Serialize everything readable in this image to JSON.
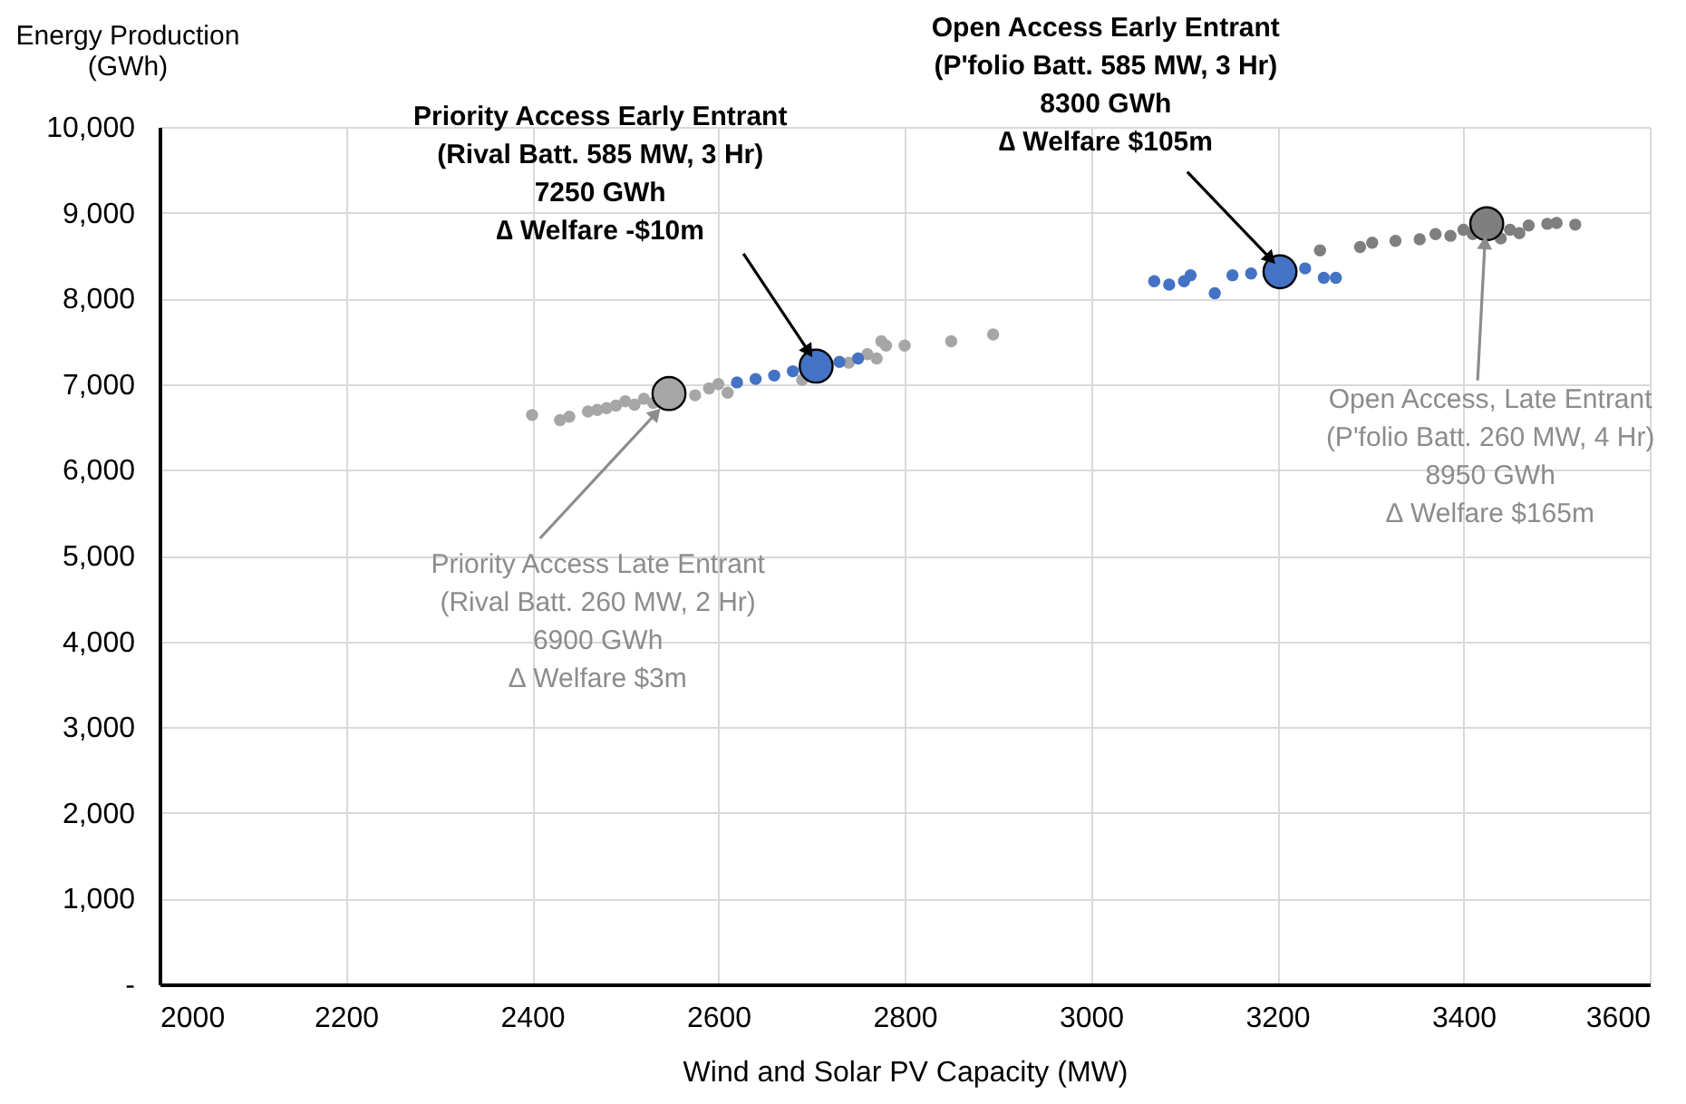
{
  "chart_data": {
    "type": "scatter",
    "xlabel": "Wind and Solar PV Capacity (MW)",
    "ylabel": "Energy Production (GWh)",
    "xlim": [
      2000,
      3600
    ],
    "xticks": [
      2000,
      2200,
      2400,
      2600,
      2800,
      3000,
      3200,
      3400,
      3600
    ],
    "ylim": [
      0,
      10000
    ],
    "yticks": [
      {
        "value": 0,
        "label": "-"
      },
      {
        "value": 1000,
        "label": "1,000"
      },
      {
        "value": 2000,
        "label": "2,000"
      },
      {
        "value": 3000,
        "label": "3,000"
      },
      {
        "value": 4000,
        "label": "4,000"
      },
      {
        "value": 5000,
        "label": "5,000"
      },
      {
        "value": 6000,
        "label": "6,000"
      },
      {
        "value": 7000,
        "label": "7,000"
      },
      {
        "value": 8000,
        "label": "8,000"
      },
      {
        "value": 9000,
        "label": "9,000"
      },
      {
        "value": 10000,
        "label": "10,000"
      }
    ],
    "grid": true,
    "marker": "circle",
    "series": [
      {
        "color": "#a6a6a6",
        "x": [
          2400,
          2430,
          2440,
          2460,
          2470,
          2480,
          2490,
          2500,
          2510,
          2520,
          2530,
          2575,
          2590,
          2600,
          2610,
          2690,
          2740,
          2760,
          2770,
          2775,
          2780,
          2800,
          2850,
          2895
        ],
        "values": [
          6640,
          6580,
          6620,
          6680,
          6700,
          6720,
          6750,
          6800,
          6760,
          6830,
          6780,
          6870,
          6950,
          7000,
          6900,
          7050,
          7250,
          7350,
          7300,
          7500,
          7450,
          7450,
          7500,
          7580
        ]
      },
      {
        "color": "#4472c4",
        "x": [
          2620,
          2640,
          2660,
          2680,
          2730,
          2750,
          3068,
          3084,
          3100,
          3107,
          3133,
          3152,
          3172,
          3230,
          3250,
          3263
        ],
        "values": [
          7020,
          7060,
          7100,
          7150,
          7260,
          7300,
          8200,
          8160,
          8200,
          8270,
          8060,
          8270,
          8290,
          8350,
          8240,
          8240
        ]
      },
      {
        "color": "#7f7f7f",
        "x": [
          3246,
          3289,
          3302,
          3327,
          3353,
          3370,
          3386,
          3400,
          3410,
          3440,
          3450,
          3460,
          3470,
          3490,
          3500,
          3520
        ],
        "values": [
          8560,
          8600,
          8650,
          8670,
          8690,
          8750,
          8730,
          8800,
          8750,
          8700,
          8800,
          8760,
          8850,
          8870,
          8880,
          8860
        ]
      },
      {
        "colors": [
          "#a6a6a6",
          "#4472c4",
          "#4472c4",
          "#7f7f7f"
        ],
        "x": [
          2547,
          2705,
          3203,
          3425
        ],
        "values": [
          6890,
          7210,
          8310,
          8870
        ]
      }
    ],
    "annotations": [
      {
        "text": "Priority Access Early Entrant\n(Rival Batt. 585 MW, 3 Hr)\n7250 GWh\n∆ Welfare -$10m",
        "x": 2697,
        "y": 7380
      },
      {
        "text": "Open Access Early Entrant\n(P'folio Batt. 585 MW, 3 Hr)\n8300 GWh\n∆ Welfare $105m",
        "x": 3193,
        "y": 8460
      },
      {
        "text": "Open Access, Late Entrant\n(P'folio Batt.  260 MW, 4 Hr)\n8950 GWh\n∆ Welfare $165m",
        "x": 3423,
        "y": 8650
      },
      {
        "text": "Priority Access Late Entrant\n(Rival Batt. 260 MW, 2 Hr)\n6900 GWh\n∆ Welfare $3m",
        "x": 2533,
        "y": 6660
      }
    ]
  }
}
